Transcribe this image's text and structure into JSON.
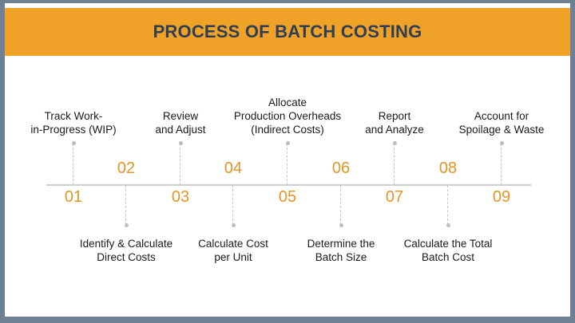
{
  "title": "PROCESS OF BATCH COSTING",
  "steps": [
    {
      "number": "01",
      "label": "Track Work-\nin-Progress (WIP)"
    },
    {
      "number": "02",
      "label": "Identify & Calculate\nDirect Costs"
    },
    {
      "number": "03",
      "label": "Review\nand Adjust"
    },
    {
      "number": "04",
      "label": "Calculate Cost\nper Unit"
    },
    {
      "number": "05",
      "label": "Allocate\nProduction Overheads\n(Indirect Costs)"
    },
    {
      "number": "06",
      "label": "Determine the\nBatch Size"
    },
    {
      "number": "07",
      "label": "Report\nand Analyze"
    },
    {
      "number": "08",
      "label": "Calculate the Total\nBatch Cost"
    },
    {
      "number": "09",
      "label": "Account for\nSpoilage & Waste"
    }
  ],
  "colors": {
    "banner": "#f0a228",
    "title": "#2f3e52",
    "number": "#e39524",
    "frame": "#6f7f94"
  }
}
